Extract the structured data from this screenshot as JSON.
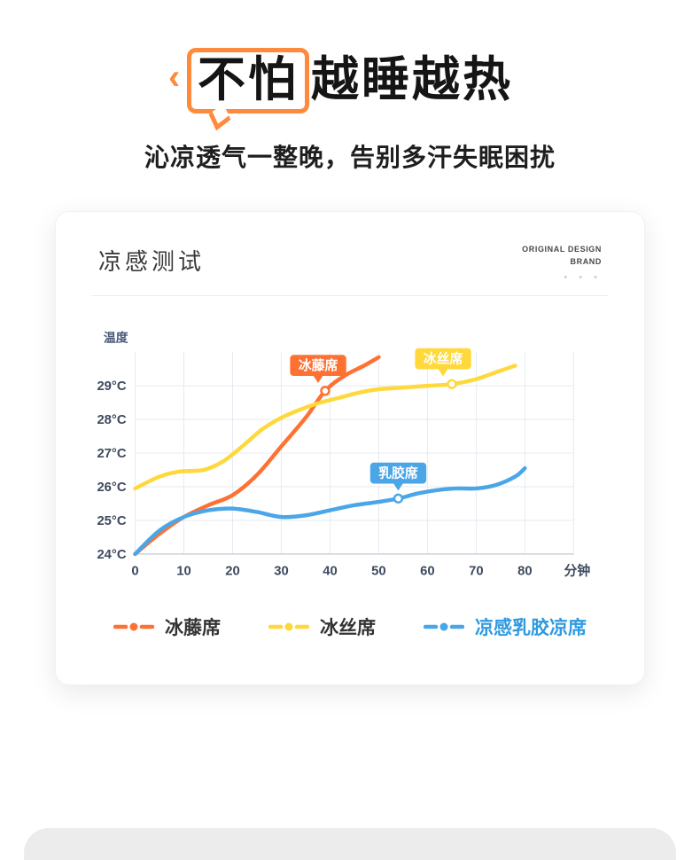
{
  "hero": {
    "boxed_text": "不怕",
    "rest_text": "越睡越热",
    "doodle_mark": "‹",
    "subtitle": "沁凉透气一整晚，告别多汗失眠困扰",
    "box_color": "#ff8a3c"
  },
  "card": {
    "title": "凉感测试",
    "brand_line1": "ORIGINAL DESIGN",
    "brand_line2": "BRAND",
    "dots": "• • •"
  },
  "legend": {
    "items": [
      {
        "label": "冰藤席",
        "color": "#ff7132",
        "text_color": "#333333"
      },
      {
        "label": "冰丝席",
        "color": "#ffd83c",
        "text_color": "#333333"
      },
      {
        "label": "凉感乳胶凉席",
        "color": "#4ba6e8",
        "text_color": "#2f9ae0"
      }
    ]
  },
  "chart_data": {
    "type": "line",
    "title": "凉感测试",
    "ylabel": "温度",
    "xlabel": "分钟",
    "xlim": [
      0,
      90
    ],
    "ylim": [
      24,
      30
    ],
    "grid": true,
    "legend_position": "bottom",
    "x_ticks": [
      0,
      10,
      20,
      30,
      40,
      50,
      60,
      70,
      80
    ],
    "y_ticks": [
      {
        "value": 24,
        "label": "24°C"
      },
      {
        "value": 25,
        "label": "25°C"
      },
      {
        "value": 26,
        "label": "26°C"
      },
      {
        "value": 27,
        "label": "27°C"
      },
      {
        "value": 28,
        "label": "28°C"
      },
      {
        "value": 29,
        "label": "29°C"
      }
    ],
    "series": [
      {
        "name": "冰藤席",
        "color": "#ff7132",
        "badge": {
          "text": "冰藤席",
          "at": [
            39,
            28.85
          ],
          "dx": -8
        },
        "points": [
          [
            0,
            24.0
          ],
          [
            5,
            24.6
          ],
          [
            10,
            25.1
          ],
          [
            15,
            25.45
          ],
          [
            20,
            25.75
          ],
          [
            25,
            26.35
          ],
          [
            30,
            27.2
          ],
          [
            35,
            28.05
          ],
          [
            39,
            28.85
          ],
          [
            43,
            29.3
          ],
          [
            47,
            29.6
          ],
          [
            50,
            29.85
          ]
        ]
      },
      {
        "name": "冰丝席",
        "color": "#ffd83c",
        "badge": {
          "text": "冰丝席",
          "at": [
            65,
            29.05
          ],
          "dx": -10
        },
        "points": [
          [
            0,
            25.95
          ],
          [
            5,
            26.3
          ],
          [
            9,
            26.45
          ],
          [
            14,
            26.5
          ],
          [
            18,
            26.75
          ],
          [
            22,
            27.2
          ],
          [
            26,
            27.7
          ],
          [
            30,
            28.05
          ],
          [
            34,
            28.3
          ],
          [
            38,
            28.5
          ],
          [
            42,
            28.65
          ],
          [
            46,
            28.8
          ],
          [
            50,
            28.9
          ],
          [
            55,
            28.95
          ],
          [
            60,
            29.0
          ],
          [
            65,
            29.05
          ],
          [
            70,
            29.2
          ],
          [
            74,
            29.4
          ],
          [
            78,
            29.6
          ]
        ]
      },
      {
        "name": "乳胶席",
        "color": "#4ba6e8",
        "badge": {
          "text": "乳胶席",
          "at": [
            54,
            25.65
          ],
          "dx": 0
        },
        "points": [
          [
            0,
            24.0
          ],
          [
            5,
            24.7
          ],
          [
            10,
            25.1
          ],
          [
            15,
            25.3
          ],
          [
            20,
            25.35
          ],
          [
            25,
            25.25
          ],
          [
            30,
            25.1
          ],
          [
            35,
            25.15
          ],
          [
            40,
            25.3
          ],
          [
            45,
            25.45
          ],
          [
            50,
            25.55
          ],
          [
            54,
            25.65
          ],
          [
            58,
            25.8
          ],
          [
            62,
            25.9
          ],
          [
            66,
            25.95
          ],
          [
            70,
            25.95
          ],
          [
            74,
            26.05
          ],
          [
            78,
            26.3
          ],
          [
            80,
            26.55
          ]
        ]
      }
    ]
  }
}
